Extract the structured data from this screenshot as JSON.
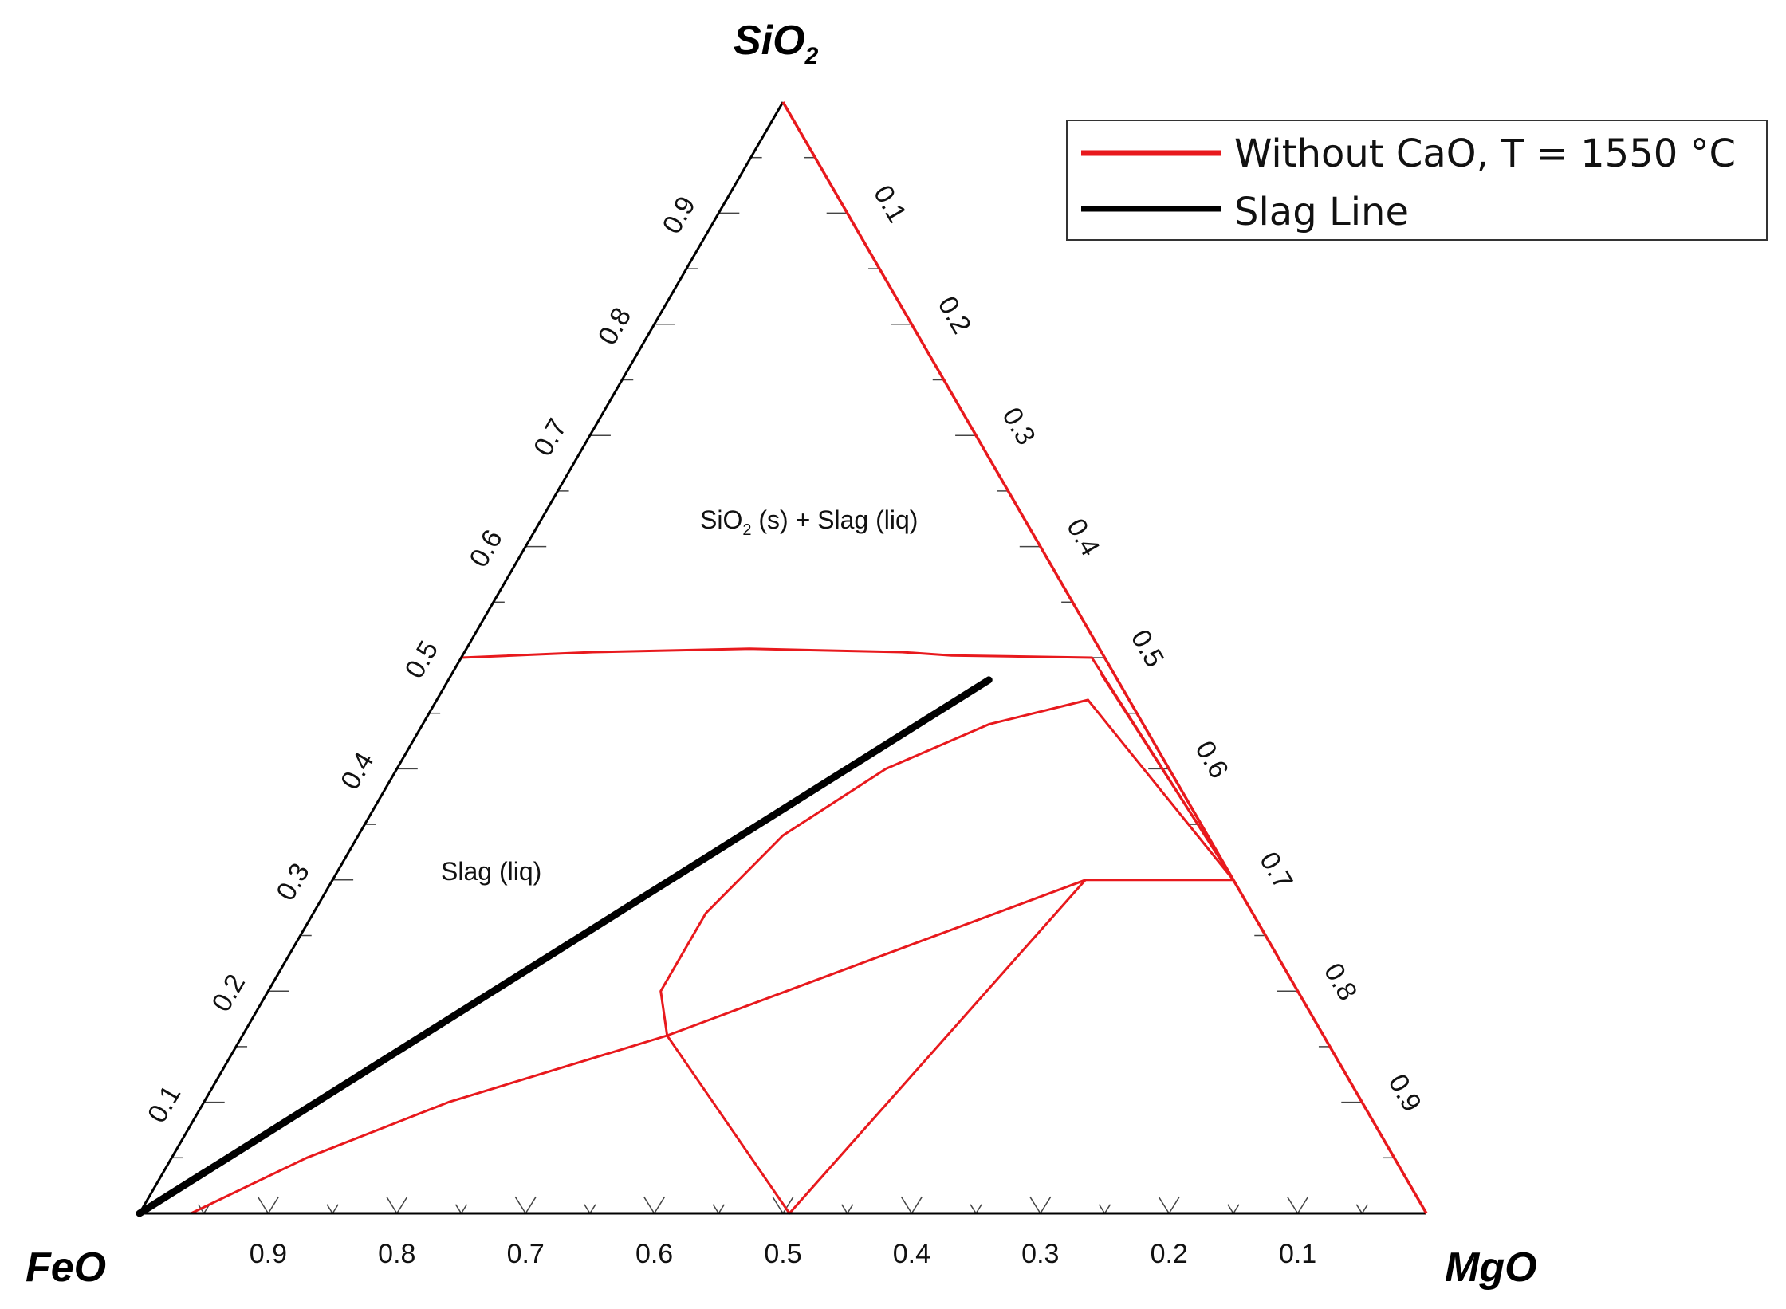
{
  "chart_data": {
    "type": "ternary",
    "title": "",
    "vertices": {
      "top": {
        "label": "SiO",
        "subscript": "2"
      },
      "left": {
        "label": "FeO"
      },
      "right": {
        "label": "MgO"
      }
    },
    "axes": {
      "bottom_ticks": [
        "0.9",
        "0.8",
        "0.7",
        "0.6",
        "0.5",
        "0.4",
        "0.3",
        "0.2",
        "0.1"
      ],
      "left_ticks": [
        "0.1",
        "0.2",
        "0.3",
        "0.4",
        "0.5",
        "0.6",
        "0.7",
        "0.8",
        "0.9"
      ],
      "right_ticks": [
        "0.1",
        "0.2",
        "0.3",
        "0.4",
        "0.5",
        "0.6",
        "0.7",
        "0.8",
        "0.9"
      ],
      "bottom_tick_values": [
        0.9,
        0.8,
        0.7,
        0.6,
        0.5,
        0.4,
        0.3,
        0.2,
        0.1
      ],
      "left_tick_values": [
        0.1,
        0.2,
        0.3,
        0.4,
        0.5,
        0.6,
        0.7,
        0.8,
        0.9
      ],
      "right_tick_values": [
        0.1,
        0.2,
        0.3,
        0.4,
        0.5,
        0.6,
        0.7,
        0.8,
        0.9
      ]
    },
    "legend": {
      "placement": "top-right",
      "entries": [
        {
          "label": "Without CaO, T = 1550 °C",
          "color": "#e8191d"
        },
        {
          "label": "Slag Line",
          "color": "#000000"
        }
      ]
    },
    "region_labels": [
      {
        "text_main": "SiO",
        "sub": "2",
        "text_rest": " (s) + Slag (liq)",
        "comp": {
          "SiO2": 0.6,
          "MgO": 0.18
        }
      },
      {
        "text": "Slag (liq)",
        "comp": {
          "SiO2": 0.27,
          "MgO": 0.14
        }
      }
    ],
    "series": [
      {
        "name": "Slag Line",
        "color": "#000000",
        "points": [
          {
            "SiO2": 0.0,
            "MgO": 0.0
          },
          {
            "SiO2": 0.48,
            "MgO": 0.42
          }
        ]
      },
      {
        "name": "Without CaO, T = 1550 °C",
        "color": "#e8191d",
        "boundaries": [
          {
            "name": "SiO2 liquidus",
            "points": [
              {
                "SiO2": 0.5,
                "MgO": 0.0
              },
              {
                "SiO2": 0.505,
                "MgO": 0.1
              },
              {
                "SiO2": 0.508,
                "MgO": 0.22
              },
              {
                "SiO2": 0.505,
                "MgO": 0.34
              },
              {
                "SiO2": 0.502,
                "MgO": 0.38
              },
              {
                "SiO2": 0.5,
                "MgO": 0.49
              }
            ]
          },
          {
            "name": "upper edge band",
            "points": [
              {
                "SiO2": 0.5,
                "MgO": 0.49
              },
              {
                "SiO2": 0.3,
                "MgO": 0.7
              }
            ]
          },
          {
            "name": "tie line 1",
            "points": [
              {
                "SiO2": 0.485,
                "MgO": 0.505
              },
              {
                "SiO2": 0.3,
                "MgO": 0.7
              }
            ]
          },
          {
            "name": "tie line 2",
            "points": [
              {
                "SiO2": 0.462,
                "MgO": 0.506
              },
              {
                "SiO2": 0.3,
                "MgO": 0.7
              }
            ]
          },
          {
            "name": "curved liquidus",
            "points": [
              {
                "SiO2": 0.462,
                "MgO": 0.506
              },
              {
                "SiO2": 0.44,
                "MgO": 0.44
              },
              {
                "SiO2": 0.4,
                "MgO": 0.38
              },
              {
                "SiO2": 0.34,
                "MgO": 0.33
              },
              {
                "SiO2": 0.27,
                "MgO": 0.305
              },
              {
                "SiO2": 0.2,
                "MgO": 0.305
              },
              {
                "SiO2": 0.16,
                "MgO": 0.33
              }
            ]
          },
          {
            "name": "lower boundary",
            "points": [
              {
                "SiO2": 0.0,
                "MgO": 0.04
              },
              {
                "SiO2": 0.05,
                "MgO": 0.105
              },
              {
                "SiO2": 0.1,
                "MgO": 0.19
              },
              {
                "SiO2": 0.16,
                "MgO": 0.33
              },
              {
                "SiO2": 0.3,
                "MgO": 0.585
              }
            ]
          },
          {
            "name": "three-phase top",
            "points": [
              {
                "SiO2": 0.3,
                "MgO": 0.585
              },
              {
                "SiO2": 0.3,
                "MgO": 0.7
              }
            ]
          },
          {
            "name": "left leg",
            "points": [
              {
                "SiO2": 0.16,
                "MgO": 0.33
              },
              {
                "SiO2": 0.0,
                "MgO": 0.505
              }
            ]
          },
          {
            "name": "right leg",
            "points": [
              {
                "SiO2": 0.3,
                "MgO": 0.585
              },
              {
                "SiO2": 0.0,
                "MgO": 0.505
              }
            ]
          }
        ]
      }
    ]
  }
}
